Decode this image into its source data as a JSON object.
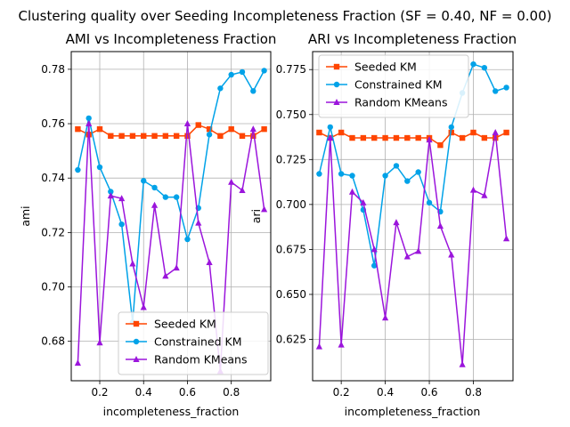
{
  "figure": {
    "suptitle": "Clustering quality over Seeding Incompleteness Fraction (SF = 0.40, NF = 0.00)"
  },
  "chart_data": [
    {
      "type": "line",
      "title": "AMI vs Incompleteness Fraction",
      "xlabel": "incompleteness_fraction",
      "ylabel": "ami",
      "xlim": [
        0.07,
        0.98
      ],
      "ylim": [
        0.6655,
        0.7865
      ],
      "xticks": [
        0.2,
        0.4,
        0.6,
        0.8
      ],
      "xtick_labels": [
        "0.2",
        "0.4",
        "0.6",
        "0.8"
      ],
      "yticks": [
        0.68,
        0.7,
        0.72,
        0.74,
        0.76,
        0.78
      ],
      "ytick_labels": [
        "0.68",
        "0.70",
        "0.72",
        "0.74",
        "0.76",
        "0.78"
      ],
      "grid": true,
      "legend_position": "lower-center",
      "x": [
        0.1,
        0.15,
        0.2,
        0.25,
        0.3,
        0.35,
        0.4,
        0.45,
        0.5,
        0.55,
        0.6,
        0.65,
        0.7,
        0.75,
        0.8,
        0.85,
        0.9,
        0.95
      ],
      "series": [
        {
          "name": "Seeded KM",
          "color": "#ff4500",
          "marker": "square",
          "values": [
            0.758,
            0.756,
            0.758,
            0.7555,
            0.7555,
            0.7555,
            0.7555,
            0.7555,
            0.7555,
            0.7555,
            0.7555,
            0.7595,
            0.758,
            0.7555,
            0.758,
            0.7555,
            0.7555,
            0.758
          ]
        },
        {
          "name": "Constrained KM",
          "color": "#00a2e8",
          "marker": "circle",
          "values": [
            0.743,
            0.762,
            0.744,
            0.735,
            0.723,
            0.687,
            0.739,
            0.7365,
            0.733,
            0.733,
            0.7175,
            0.729,
            0.756,
            0.773,
            0.778,
            0.779,
            0.772,
            0.7795
          ]
        },
        {
          "name": "Random KMeans",
          "color": "#9b15dc",
          "marker": "triangle",
          "values": [
            0.672,
            0.76,
            0.6795,
            0.7335,
            0.7325,
            0.7085,
            0.6925,
            0.73,
            0.704,
            0.707,
            0.76,
            0.7235,
            0.709,
            0.669,
            0.7385,
            0.7355,
            0.758,
            0.7285
          ]
        }
      ]
    },
    {
      "type": "line",
      "title": "ARI vs Incompleteness Fraction",
      "xlabel": "incompleteness_fraction",
      "ylabel": "ari",
      "xlim": [
        0.07,
        0.98
      ],
      "ylim": [
        0.602,
        0.785
      ],
      "xticks": [
        0.2,
        0.4,
        0.6,
        0.8
      ],
      "xtick_labels": [
        "0.2",
        "0.4",
        "0.6",
        "0.8"
      ],
      "yticks": [
        0.625,
        0.65,
        0.675,
        0.7,
        0.725,
        0.75,
        0.775
      ],
      "ytick_labels": [
        "0.625",
        "0.650",
        "0.675",
        "0.700",
        "0.725",
        "0.750",
        "0.775"
      ],
      "grid": true,
      "legend_position": "top-left",
      "x": [
        0.1,
        0.15,
        0.2,
        0.25,
        0.3,
        0.35,
        0.4,
        0.45,
        0.5,
        0.55,
        0.6,
        0.65,
        0.7,
        0.75,
        0.8,
        0.85,
        0.9,
        0.95
      ],
      "series": [
        {
          "name": "Seeded KM",
          "color": "#ff4500",
          "marker": "square",
          "values": [
            0.74,
            0.737,
            0.74,
            0.737,
            0.737,
            0.737,
            0.737,
            0.737,
            0.737,
            0.737,
            0.737,
            0.733,
            0.74,
            0.737,
            0.74,
            0.737,
            0.737,
            0.74
          ]
        },
        {
          "name": "Constrained KM",
          "color": "#00a2e8",
          "marker": "circle",
          "values": [
            0.717,
            0.743,
            0.717,
            0.716,
            0.697,
            0.666,
            0.716,
            0.7215,
            0.713,
            0.718,
            0.701,
            0.696,
            0.743,
            0.762,
            0.778,
            0.776,
            0.763,
            0.765
          ]
        },
        {
          "name": "Random KMeans",
          "color": "#9b15dc",
          "marker": "triangle",
          "values": [
            0.621,
            0.737,
            0.622,
            0.707,
            0.701,
            0.675,
            0.637,
            0.69,
            0.671,
            0.674,
            0.736,
            0.688,
            0.672,
            0.611,
            0.708,
            0.705,
            0.74,
            0.681
          ]
        }
      ]
    }
  ]
}
